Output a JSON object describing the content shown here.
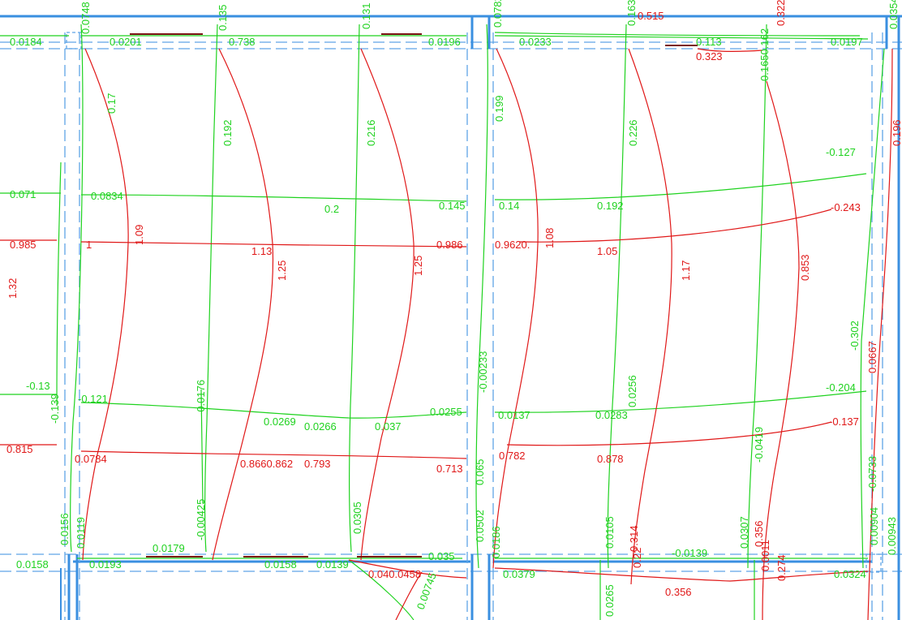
{
  "colors": {
    "background": "#ffffff",
    "beam": "#3a8fe0",
    "dash": "#5fa5e6",
    "green": "#1fd21f",
    "red": "#e01818",
    "dark": "#7a1414"
  },
  "labels": {
    "top_green": [
      "0.0184",
      "0.0748",
      "0.0201",
      "0.135",
      "0.738",
      "0.131",
      "0.0196",
      "0.0782",
      "0.0233",
      "0.163",
      "0.113",
      "0.1650.162",
      "0.0197",
      "0.0354"
    ],
    "top_red": [
      "0.323",
      "0.515",
      "0.322"
    ],
    "upper_green": [
      "0.17",
      "0.192",
      "0.216",
      "0.199",
      "0.226",
      "0.1650.162"
    ],
    "right_red": [
      "0.196"
    ],
    "band1_green": [
      "0.071",
      "0.0834",
      "0.2",
      "0.145",
      "0.14",
      "0.192",
      "-0.127"
    ],
    "band1_red": [
      "1.32",
      "0.985",
      "1",
      "1.09",
      "1.13",
      "1.25",
      "1.25",
      "0.986",
      "0.9620.",
      "1.08",
      "1.05",
      "1.17",
      "0.853",
      "-0.243"
    ],
    "middle_green": [
      "-0.302",
      "-0.00233",
      "0.0256"
    ],
    "middle_red": [
      "0.0667"
    ],
    "band2_green": [
      "-0.13",
      "-0.139",
      "-0.121",
      "-0.0176",
      "0.0269",
      "0.0266",
      "0.037",
      "0.0255",
      "0.0137",
      "0.0283",
      "-0.204",
      "-0.0419",
      "-0.0733"
    ],
    "band2_red": [
      "0.815",
      "0.0784",
      "0.8660.862",
      "0.793",
      "0.713",
      "0.782",
      "0.878",
      "-0.137"
    ],
    "lower_green": [
      "0.065",
      "0.0156",
      "0.0119",
      "-0.00425",
      "0.0305",
      "0.0502",
      "0.0186",
      "0.0105",
      "0.0307",
      "0.00904",
      "0.00943"
    ],
    "lower_red": [
      "0.314",
      "0.356",
      "0.22",
      "0.0011"
    ],
    "bottom_green": [
      "0.0158",
      "0.0193",
      "0.0179",
      "0.0158",
      "0.0139",
      "0.035",
      "0.0379",
      "-0.0139",
      "0.0324",
      "0.00745",
      "0.0265"
    ],
    "bottom_red": [
      "0.040.0458",
      "0.356",
      "0.274"
    ]
  }
}
